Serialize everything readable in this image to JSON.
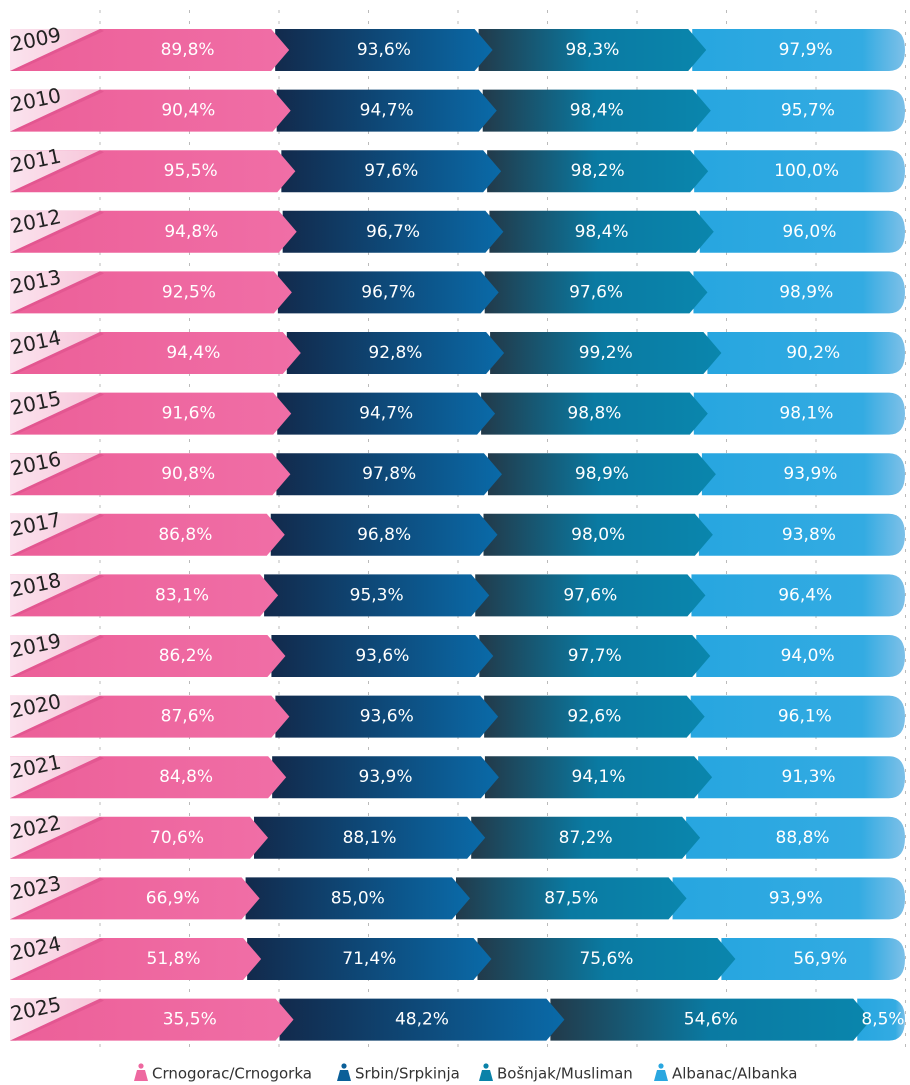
{
  "chart_data": {
    "type": "bar",
    "orientation": "horizontal",
    "stacking": "percent",
    "categories": [
      "2009",
      "2010",
      "2011",
      "2012",
      "2013",
      "2014",
      "2015",
      "2016",
      "2017",
      "2018",
      "2019",
      "2020",
      "2021",
      "2022",
      "2023",
      "2024",
      "2025"
    ],
    "series": [
      {
        "name": "Crnogorac/Crnogorka",
        "color": "#ee68a0",
        "values": [
          89.8,
          90.4,
          95.5,
          94.8,
          92.5,
          94.4,
          91.6,
          90.8,
          86.8,
          83.1,
          86.2,
          87.6,
          84.8,
          70.6,
          66.9,
          51.8,
          35.5
        ],
        "value_labels": [
          "89,8%",
          "90,4%",
          "95,5%",
          "94,8%",
          "92,5%",
          "94,4%",
          "91,6%",
          "90,8%",
          "86,8%",
          "83,1%",
          "86,2%",
          "87,6%",
          "84,8%",
          "70,6%",
          "66,9%",
          "51,8%",
          "35,5%"
        ]
      },
      {
        "name": "Srbin/Srpkinja",
        "color": "#0b5f98",
        "values": [
          93.6,
          94.7,
          97.6,
          96.7,
          96.7,
          92.8,
          94.7,
          97.8,
          96.8,
          95.3,
          93.6,
          93.6,
          93.9,
          88.1,
          85.0,
          71.4,
          48.2
        ],
        "value_labels": [
          "93,6%",
          "94,7%",
          "97,6%",
          "96,7%",
          "96,7%",
          "92,8%",
          "94,7%",
          "97,8%",
          "96,8%",
          "95,3%",
          "93,6%",
          "93,6%",
          "93,9%",
          "88,1%",
          "85,0%",
          "71,4%",
          "48,2%"
        ]
      },
      {
        "name": "Bošnjak/Musliman",
        "color": "#0a82a8",
        "values": [
          98.3,
          98.4,
          98.2,
          98.4,
          97.6,
          99.2,
          98.8,
          98.9,
          98.0,
          97.6,
          97.7,
          92.6,
          94.1,
          87.2,
          87.5,
          75.6,
          54.6
        ],
        "value_labels": [
          "98,3%",
          "98,4%",
          "98,2%",
          "98,4%",
          "97,6%",
          "99,2%",
          "98,8%",
          "98,9%",
          "98,0%",
          "97,6%",
          "97,7%",
          "92,6%",
          "94,1%",
          "87,2%",
          "87,5%",
          "75,6%",
          "54,6%"
        ]
      },
      {
        "name": "Albanac/Albanka",
        "color": "#2aa7e0",
        "values": [
          97.9,
          95.7,
          100.0,
          96.0,
          98.9,
          90.2,
          98.1,
          93.9,
          93.8,
          96.4,
          94.0,
          96.1,
          91.3,
          88.8,
          93.9,
          56.9,
          8.5
        ],
        "value_labels": [
          "97,9%",
          "95,7%",
          "100,0%",
          "96,0%",
          "98,9%",
          "90,2%",
          "98,1%",
          "93,9%",
          "93,8%",
          "96,4%",
          "94,0%",
          "96,1%",
          "91,3%",
          "88,8%",
          "93,9%",
          "56,9%",
          "8,5%"
        ]
      }
    ]
  }
}
